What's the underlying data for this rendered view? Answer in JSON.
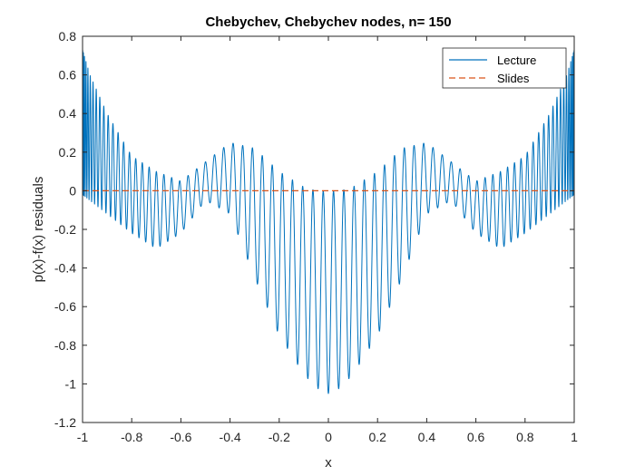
{
  "chart_data": {
    "type": "line",
    "title": "Chebychev, Chebychev nodes, n= 150",
    "xlabel": "x",
    "ylabel": "p(x)-f(x) residuals",
    "xlim": [
      -1,
      1
    ],
    "ylim": [
      -1.2,
      0.8
    ],
    "xticks": [
      -1,
      -0.8,
      -0.6,
      -0.4,
      -0.2,
      0,
      0.2,
      0.4,
      0.6,
      0.8,
      1
    ],
    "xtick_labels": [
      "-1",
      "-0.8",
      "-0.6",
      "-0.4",
      "-0.2",
      "0",
      "0.2",
      "0.4",
      "0.6",
      "0.8",
      "1"
    ],
    "yticks": [
      -1.2,
      -1,
      -0.8,
      -0.6,
      -0.4,
      -0.2,
      0,
      0.2,
      0.4,
      0.6,
      0.8
    ],
    "ytick_labels": [
      "-1.2",
      "-1",
      "-0.8",
      "-0.6",
      "-0.4",
      "-0.2",
      "0",
      "0.2",
      "0.4",
      "0.6",
      "0.8"
    ],
    "grid": false,
    "legend_position": "top-right",
    "series": [
      {
        "name": "Lecture",
        "color": "#0072BD",
        "style": "solid",
        "n_nodes": 150,
        "envelope_x": [
          -1,
          -0.97,
          -0.9,
          -0.8,
          -0.7,
          -0.6,
          -0.5,
          -0.4,
          -0.3,
          -0.2,
          -0.1,
          -0.05,
          0,
          0.05,
          0.1,
          0.2,
          0.3,
          0.4,
          0.5,
          0.6,
          0.7,
          0.8,
          0.9,
          0.97,
          1
        ],
        "envelope_upper": [
          0.73,
          0.6,
          0.4,
          0.18,
          0.1,
          0.05,
          0.15,
          0.25,
          0.22,
          0.1,
          0.02,
          0.0,
          0.0,
          0.0,
          0.02,
          0.1,
          0.22,
          0.25,
          0.15,
          0.05,
          0.1,
          0.18,
          0.4,
          0.6,
          0.73
        ],
        "envelope_lower": [
          -0.02,
          -0.05,
          -0.12,
          -0.22,
          -0.3,
          -0.22,
          -0.05,
          -0.12,
          -0.45,
          -0.75,
          -0.95,
          -1.02,
          -1.05,
          -1.02,
          -0.95,
          -0.75,
          -0.45,
          -0.12,
          -0.05,
          -0.22,
          -0.3,
          -0.22,
          -0.12,
          -0.05,
          -0.02
        ]
      },
      {
        "name": "Slides",
        "color": "#D95319",
        "style": "dashed",
        "x": [
          -1,
          1
        ],
        "y": [
          0,
          0
        ]
      }
    ]
  }
}
